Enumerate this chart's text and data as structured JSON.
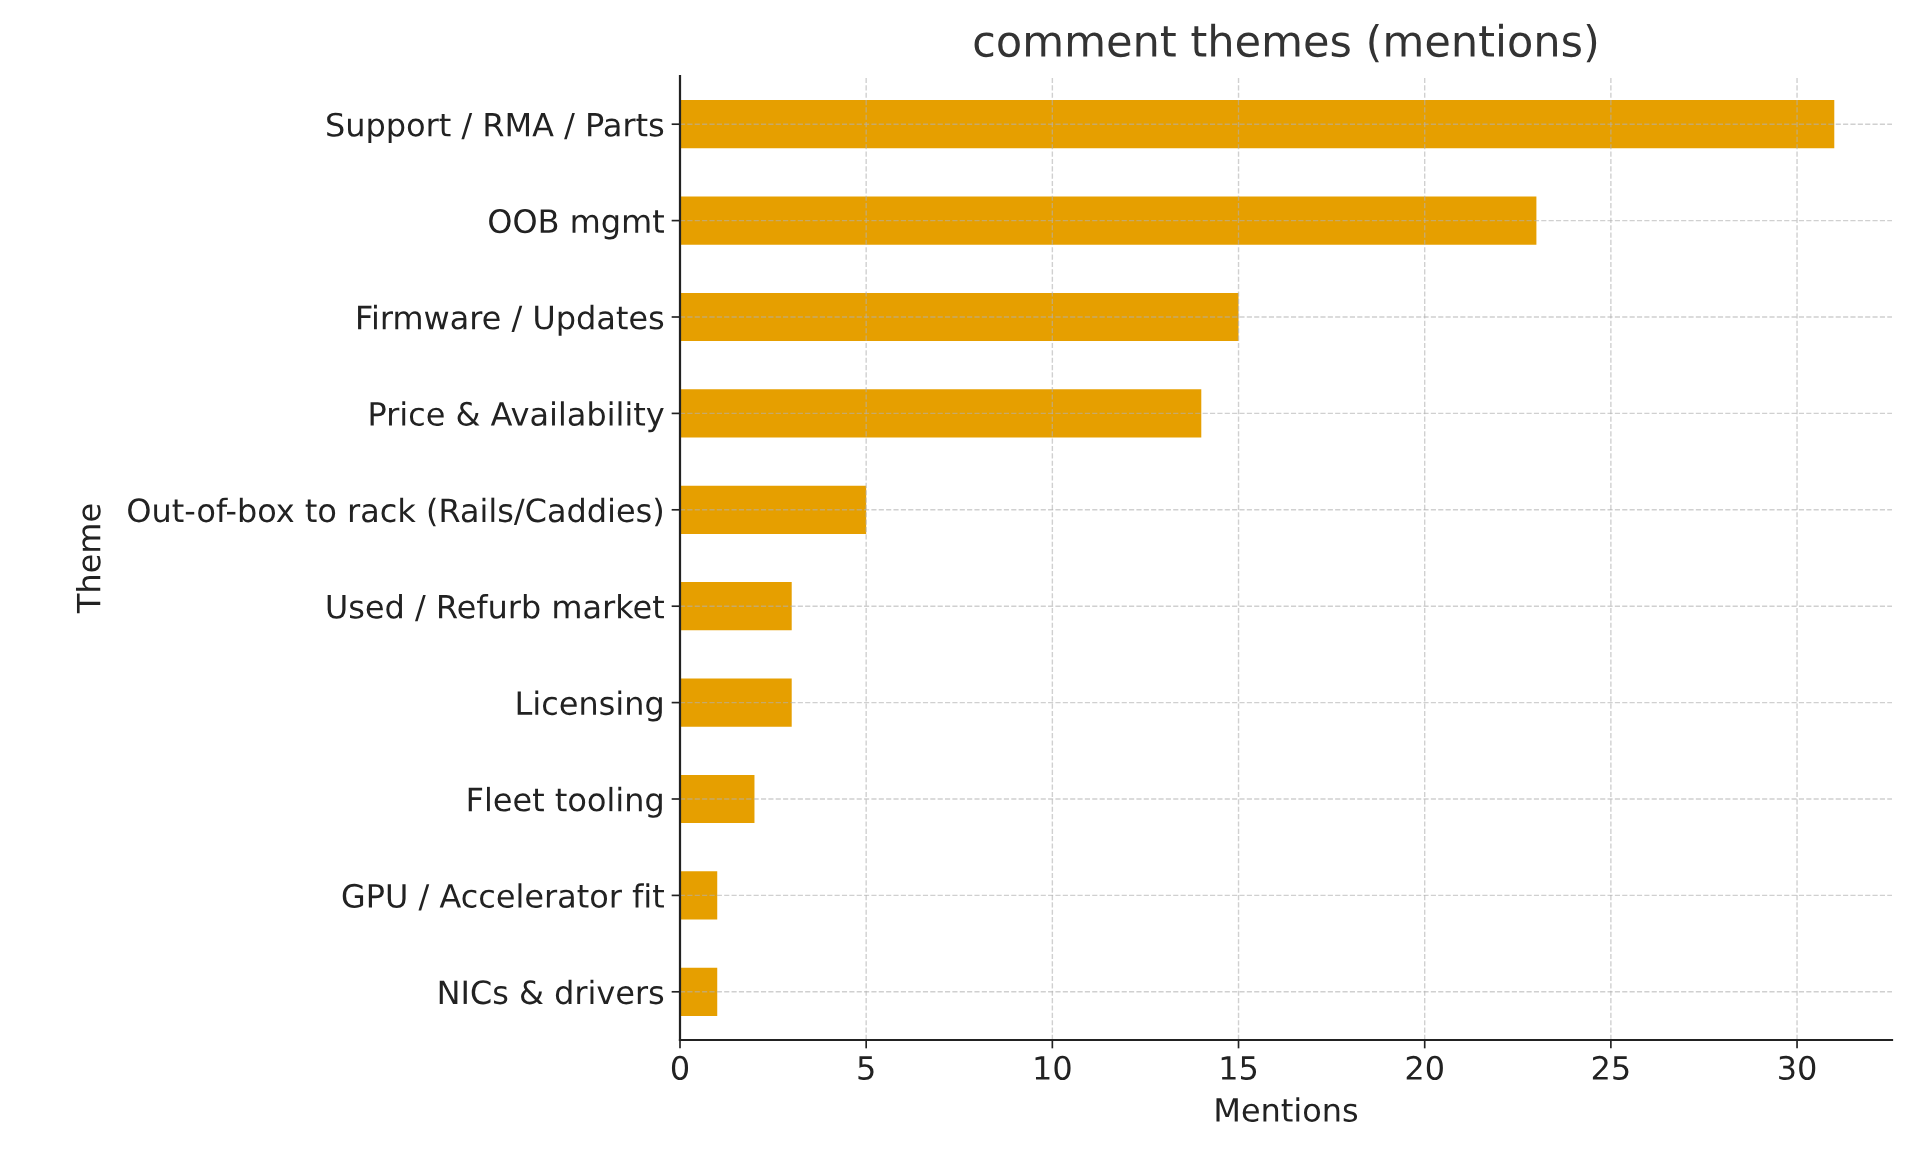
{
  "chart_data": {
    "type": "bar",
    "orientation": "horizontal",
    "title": "comment themes (mentions)",
    "xlabel": "Mentions",
    "ylabel": "Theme",
    "categories": [
      "Support / RMA / Parts",
      "OOB mgmt",
      "Firmware / Updates",
      "Price & Availability",
      "Out-of-box to rack (Rails/Caddies)",
      "Used / Refurb market",
      "Licensing",
      "Fleet tooling",
      "GPU / Accelerator fit",
      "NICs & drivers"
    ],
    "values": [
      31,
      23,
      15,
      14,
      5,
      3,
      3,
      2,
      1,
      1
    ],
    "color": "#e69f00",
    "xlim": [
      0,
      32.55
    ],
    "xticks": [
      0,
      5,
      10,
      15,
      20,
      25,
      30
    ],
    "grid": true
  }
}
